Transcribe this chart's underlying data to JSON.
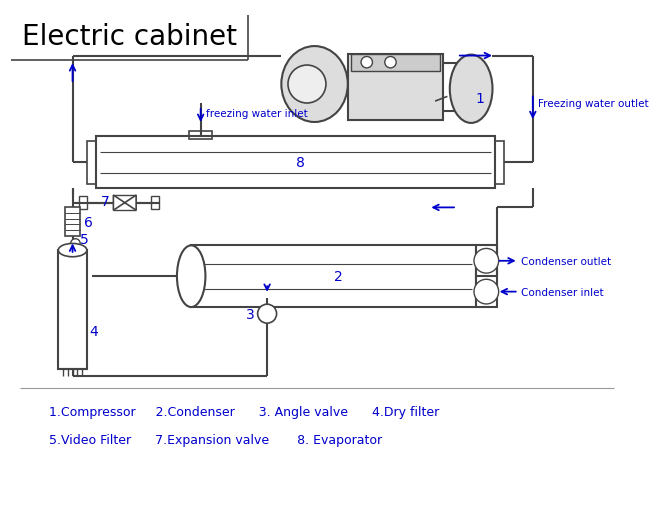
{
  "title": "Electric cabinet",
  "title_font": "Courier New",
  "title_fontsize": 20,
  "blue": "#0000CC",
  "line_color": "#444444",
  "bg_color": "#FFFFFF",
  "legend_lines": [
    "1.Compressor     2.Condenser      3. Angle valve      4.Dry filter",
    "5.Video Filter      7.Expansion valve       8. Evaporator"
  ]
}
